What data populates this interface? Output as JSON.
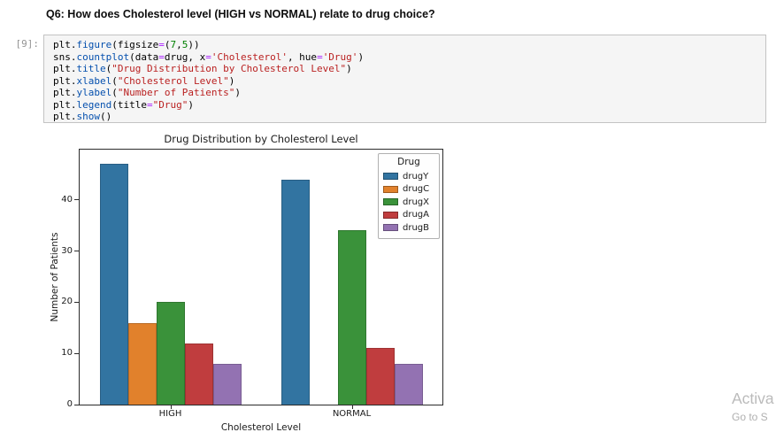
{
  "page": {
    "question": "Q6: How does Cholesterol level (HIGH vs NORMAL) relate to drug choice?",
    "watermark_line1": "Activa",
    "watermark_line2": "Go to S"
  },
  "cell": {
    "prompt": "[9]:",
    "code_lines": [
      [
        [
          "v",
          "plt."
        ],
        [
          "p",
          "figure"
        ],
        [
          "v",
          "(figsize"
        ],
        [
          "o",
          "="
        ],
        [
          "v",
          "("
        ],
        [
          "n",
          "7"
        ],
        [
          "v",
          ","
        ],
        [
          "n",
          "5"
        ],
        [
          "v",
          "))"
        ]
      ],
      [
        [
          "v",
          "sns."
        ],
        [
          "p",
          "countplot"
        ],
        [
          "v",
          "(data"
        ],
        [
          "o",
          "="
        ],
        [
          "v",
          "drug, x"
        ],
        [
          "o",
          "="
        ],
        [
          "s",
          "'Cholesterol'"
        ],
        [
          "v",
          ", hue"
        ],
        [
          "o",
          "="
        ],
        [
          "s",
          "'Drug'"
        ],
        [
          "v",
          ")"
        ]
      ],
      [
        [
          "v",
          "plt."
        ],
        [
          "p",
          "title"
        ],
        [
          "v",
          "("
        ],
        [
          "s",
          "\"Drug Distribution by Cholesterol Level\""
        ],
        [
          "v",
          ")"
        ]
      ],
      [
        [
          "v",
          "plt."
        ],
        [
          "p",
          "xlabel"
        ],
        [
          "v",
          "("
        ],
        [
          "s",
          "\"Cholesterol Level\""
        ],
        [
          "v",
          ")"
        ]
      ],
      [
        [
          "v",
          "plt."
        ],
        [
          "p",
          "ylabel"
        ],
        [
          "v",
          "("
        ],
        [
          "s",
          "\"Number of Patients\""
        ],
        [
          "v",
          ")"
        ]
      ],
      [
        [
          "v",
          "plt."
        ],
        [
          "p",
          "legend"
        ],
        [
          "v",
          "(title"
        ],
        [
          "o",
          "="
        ],
        [
          "s",
          "\"Drug\""
        ],
        [
          "v",
          ")"
        ]
      ],
      [
        [
          "v",
          "plt."
        ],
        [
          "p",
          "show"
        ],
        [
          "v",
          "()"
        ]
      ]
    ]
  },
  "chart_data": {
    "type": "bar",
    "title": "Drug Distribution by Cholesterol Level",
    "xlabel": "Cholesterol Level",
    "ylabel": "Number of Patients",
    "categories": [
      "HIGH",
      "NORMAL"
    ],
    "series": [
      {
        "name": "drugY",
        "color": "#3274a1",
        "values": [
          47,
          44
        ]
      },
      {
        "name": "drugC",
        "color": "#e1812c",
        "values": [
          16,
          0
        ]
      },
      {
        "name": "drugX",
        "color": "#3a923a",
        "values": [
          20,
          34
        ]
      },
      {
        "name": "drugA",
        "color": "#c03d3e",
        "values": [
          12,
          11
        ]
      },
      {
        "name": "drugB",
        "color": "#9372b2",
        "values": [
          8,
          8
        ]
      }
    ],
    "yticks": [
      0,
      10,
      20,
      30,
      40
    ],
    "ylim": [
      0,
      49.8
    ],
    "legend_title": "Drug",
    "legend_position": "upper right",
    "grid": false
  }
}
